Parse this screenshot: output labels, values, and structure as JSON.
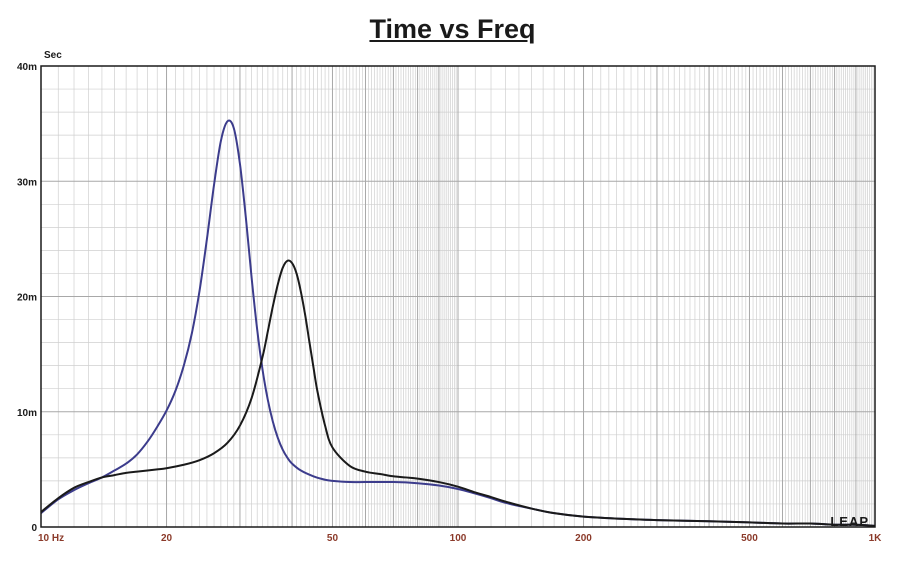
{
  "chart_data": {
    "type": "line",
    "title": "Time vs Freq",
    "ylabel": "Sec",
    "xlabel": "",
    "xscale": "log",
    "xlim": [
      10,
      1000
    ],
    "ylim": [
      0,
      0.04
    ],
    "grid": true,
    "y_ticks": [
      {
        "value": 0,
        "label": "0"
      },
      {
        "value": 0.01,
        "label": "10m"
      },
      {
        "value": 0.02,
        "label": "20m"
      },
      {
        "value": 0.03,
        "label": "30m"
      },
      {
        "value": 0.04,
        "label": "40m"
      }
    ],
    "x_ticks": [
      {
        "value": 10,
        "label": "10  Hz"
      },
      {
        "value": 20,
        "label": "20"
      },
      {
        "value": 50,
        "label": "50"
      },
      {
        "value": 100,
        "label": "100"
      },
      {
        "value": 200,
        "label": "200"
      },
      {
        "value": 500,
        "label": "500"
      },
      {
        "value": 1000,
        "label": "1K"
      }
    ],
    "series": [
      {
        "color": "#3c3c8c",
        "x": [
          10,
          11,
          12,
          13,
          14,
          15,
          16,
          17,
          18,
          19,
          20,
          21,
          22,
          23,
          24,
          25,
          26,
          27,
          28,
          29,
          30,
          31,
          32,
          33,
          34,
          35,
          36,
          37,
          38,
          39,
          40,
          42,
          45,
          48,
          50,
          55,
          60,
          70,
          80,
          90,
          100,
          110,
          120,
          130,
          150,
          170,
          200,
          250,
          300,
          400,
          500,
          600,
          700,
          800,
          900,
          1000
        ],
        "y": [
          0.0012,
          0.0024,
          0.0032,
          0.0038,
          0.0043,
          0.0049,
          0.0055,
          0.0063,
          0.0074,
          0.0087,
          0.0101,
          0.0118,
          0.014,
          0.0168,
          0.0205,
          0.025,
          0.0297,
          0.0335,
          0.0352,
          0.0346,
          0.0315,
          0.0268,
          0.0216,
          0.0171,
          0.0136,
          0.011,
          0.0091,
          0.0077,
          0.0067,
          0.006,
          0.0055,
          0.0049,
          0.0044,
          0.0041,
          0.004,
          0.0039,
          0.0039,
          0.0039,
          0.0038,
          0.0036,
          0.0033,
          0.0029,
          0.0025,
          0.0021,
          0.0016,
          0.0012,
          0.0009,
          0.0007,
          0.0006,
          0.0005,
          0.0004,
          0.0003,
          0.0003,
          0.0002,
          0.0002,
          0.0001
        ]
      },
      {
        "color": "#1a1a1a",
        "x": [
          10,
          11,
          12,
          13,
          14,
          15,
          16,
          17,
          18,
          19,
          20,
          22,
          24,
          26,
          28,
          30,
          32,
          34,
          35,
          36,
          37,
          38,
          39,
          40,
          41,
          42,
          43,
          44,
          45,
          46,
          48,
          50,
          55,
          60,
          65,
          70,
          75,
          80,
          90,
          100,
          110,
          120,
          130,
          150,
          170,
          200,
          250,
          300,
          400,
          500,
          600,
          700,
          800,
          900,
          1000
        ],
        "y": [
          0.0013,
          0.0025,
          0.0034,
          0.0039,
          0.0043,
          0.0045,
          0.0047,
          0.0048,
          0.0049,
          0.005,
          0.0051,
          0.0054,
          0.0058,
          0.0064,
          0.0073,
          0.0088,
          0.0112,
          0.0148,
          0.017,
          0.0192,
          0.0211,
          0.0225,
          0.0231,
          0.0229,
          0.022,
          0.0204,
          0.0184,
          0.0161,
          0.0139,
          0.0118,
          0.0088,
          0.0069,
          0.0053,
          0.0048,
          0.0046,
          0.0044,
          0.0043,
          0.0042,
          0.0039,
          0.0035,
          0.003,
          0.0026,
          0.0022,
          0.0016,
          0.0012,
          0.0009,
          0.0007,
          0.0006,
          0.0005,
          0.0004,
          0.0003,
          0.0003,
          0.0002,
          0.0002,
          0.0001
        ]
      }
    ],
    "watermark": "LEAP"
  }
}
